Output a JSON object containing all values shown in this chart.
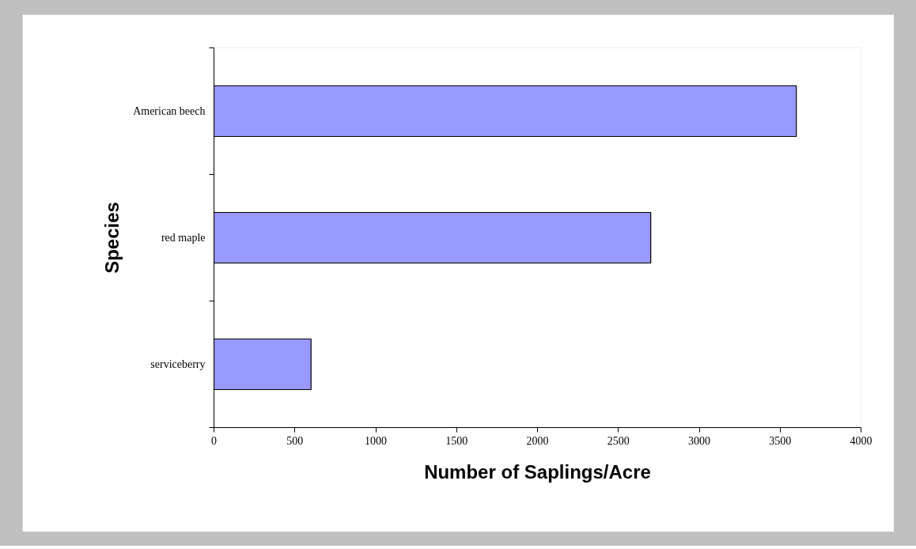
{
  "chart_data": {
    "type": "bar",
    "orientation": "horizontal",
    "categories": [
      "American beech",
      "red maple",
      "serviceberry"
    ],
    "values": [
      3600,
      2700,
      600
    ],
    "color": "#9999ff",
    "xlabel": "Number of Saplings/Acre",
    "ylabel": "Species",
    "xlim": [
      0,
      4000
    ],
    "xticks": [
      0,
      500,
      1000,
      1500,
      2000,
      2500,
      3000,
      3500,
      4000
    ],
    "grid": false
  }
}
